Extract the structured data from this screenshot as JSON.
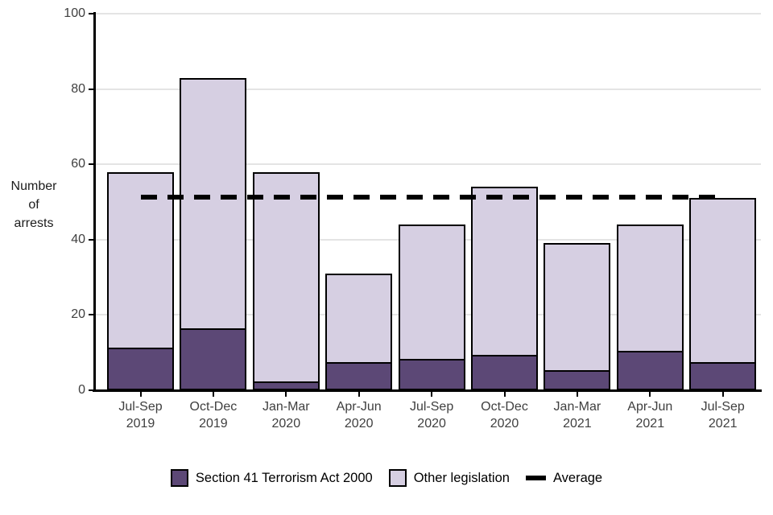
{
  "chart_data": {
    "type": "bar",
    "stacked": true,
    "title": "",
    "ylabel": "Number\nof\narrests",
    "xlabel": "",
    "categories": [
      "Jul-Sep\n2019",
      "Oct-Dec\n2019",
      "Jan-Mar\n2020",
      "Apr-Jun\n2020",
      "Jul-Sep\n2020",
      "Oct-Dec\n2020",
      "Jan-Mar\n2021",
      "Apr-Jun\n2021",
      "Jul-Sep\n2021"
    ],
    "series": [
      {
        "name": "Section 41 Terrorism Act 2000",
        "color": "#5C4876",
        "values": [
          11,
          16,
          2,
          7,
          8,
          9,
          5,
          10,
          7
        ]
      },
      {
        "name": "Other legislation",
        "color": "#D6CFE2",
        "values": [
          47,
          67,
          56,
          24,
          36,
          45,
          34,
          34,
          44
        ]
      }
    ],
    "totals": [
      58,
      83,
      58,
      31,
      44,
      54,
      39,
      44,
      51
    ],
    "average": {
      "label": "Average",
      "value": 51.3,
      "color": "#000000",
      "style": "dashed"
    },
    "ylim": [
      0,
      100
    ],
    "yticks": [
      0,
      20,
      40,
      60,
      80,
      100
    ],
    "grid": true,
    "legend_position": "bottom"
  }
}
